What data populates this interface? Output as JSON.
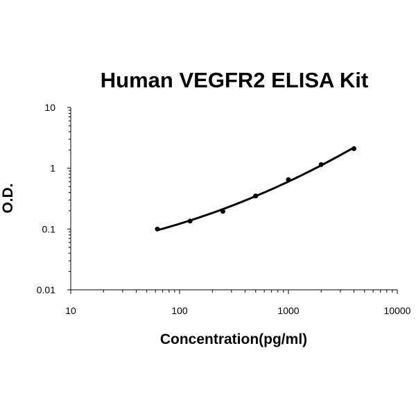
{
  "chart_data": {
    "type": "line",
    "title": "Human VEGFR2 ELISA Kit",
    "xlabel": "Concentration(pg/ml)",
    "ylabel": "O.D.",
    "x_scale": "log",
    "y_scale": "log",
    "xlim": [
      10,
      10000
    ],
    "ylim": [
      0.01,
      10
    ],
    "x_ticks": [
      "10",
      "100",
      "1000",
      "10000"
    ],
    "y_ticks": [
      "0.01",
      "0.1",
      "1",
      "10"
    ],
    "grid": false,
    "legend": "none",
    "series": [
      {
        "x": [
          62.5,
          125,
          250,
          500,
          1000,
          2000,
          4000
        ],
        "y": [
          0.1,
          0.135,
          0.195,
          0.35,
          0.65,
          1.15,
          2.1
        ]
      }
    ],
    "colors": {
      "line": "#000000",
      "marker": "#000000",
      "axis": "#000000"
    }
  }
}
